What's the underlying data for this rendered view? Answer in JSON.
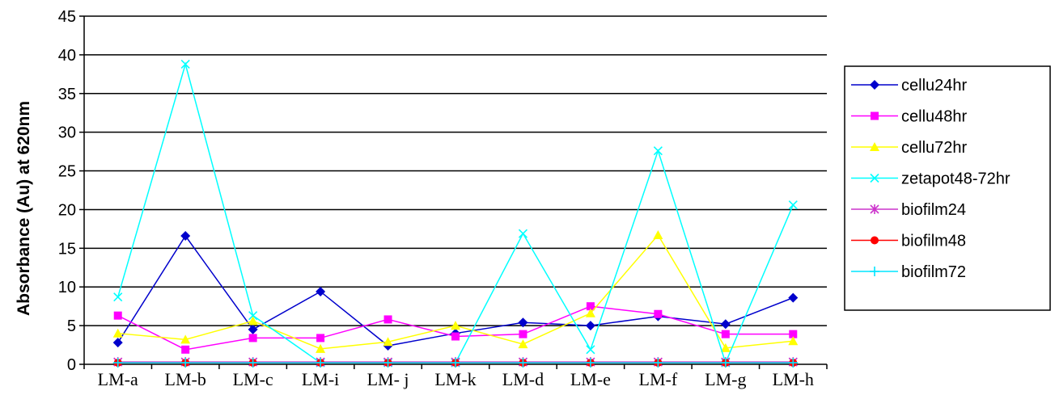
{
  "chart_data": {
    "type": "line",
    "title": "",
    "xlabel": "",
    "ylabel": "Absorbance (Au) at 620nm",
    "ylim": [
      0,
      45
    ],
    "yticks": [
      0,
      5,
      10,
      15,
      20,
      25,
      30,
      35,
      40,
      45
    ],
    "grid": "horizontal",
    "legend_position": "right",
    "categories": [
      "LM-a",
      "LM-b",
      "LM-c",
      "LM-i",
      "LM- j",
      "LM-k",
      "LM-d",
      "LM-e",
      "LM-f",
      "LM-g",
      "LM-h"
    ],
    "series": [
      {
        "name": "cellu24hr",
        "color": "#0000cc",
        "marker": "diamond",
        "values": [
          2.8,
          16.6,
          4.5,
          9.4,
          2.4,
          4.0,
          5.4,
          5.0,
          6.2,
          5.2,
          8.6
        ]
      },
      {
        "name": "cellu48hr",
        "color": "#ff00ff",
        "marker": "square",
        "values": [
          6.3,
          1.9,
          3.4,
          3.4,
          5.8,
          3.6,
          3.9,
          7.5,
          6.5,
          3.9,
          3.9
        ]
      },
      {
        "name": "cellu72hr",
        "color": "#ffff00",
        "marker": "triangle",
        "values": [
          4.0,
          3.2,
          5.6,
          2.0,
          2.9,
          5.0,
          2.6,
          6.6,
          16.7,
          2.1,
          3.0
        ]
      },
      {
        "name": "zetapot48-72hr",
        "color": "#00ffff",
        "marker": "x",
        "values": [
          8.7,
          38.8,
          6.3,
          0.2,
          0.2,
          0.2,
          16.9,
          1.9,
          27.6,
          0.2,
          20.6
        ]
      },
      {
        "name": "biofilm24",
        "color": "#cc33cc",
        "marker": "star",
        "values": [
          0.3,
          0.3,
          0.3,
          0.3,
          0.3,
          0.3,
          0.3,
          0.3,
          0.3,
          0.3,
          0.3
        ]
      },
      {
        "name": "biofilm48",
        "color": "#ff0000",
        "marker": "circle",
        "values": [
          0.2,
          0.2,
          0.2,
          0.2,
          0.2,
          0.2,
          0.2,
          0.2,
          0.2,
          0.2,
          0.2
        ]
      },
      {
        "name": "biofilm72",
        "color": "#00e5ff",
        "marker": "plus",
        "values": [
          0.2,
          0.2,
          0.2,
          0.2,
          0.2,
          0.2,
          0.2,
          0.2,
          0.2,
          0.2,
          0.2
        ]
      }
    ]
  }
}
